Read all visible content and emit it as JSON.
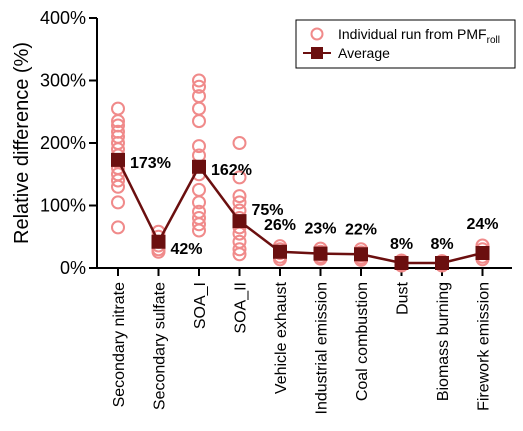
{
  "chart_data": {
    "type": "scatter",
    "title": "",
    "xlabel": "",
    "ylabel": "Relative difference (%)",
    "ylim": [
      0,
      400
    ],
    "y_ticks": [
      0,
      100,
      200,
      300,
      400
    ],
    "y_tick_labels": [
      "0%",
      "100%",
      "200%",
      "300%",
      "400%"
    ],
    "categories": [
      "Secondary nitrate",
      "Secondary sulfate",
      "SOA_I",
      "SOA_II",
      "Vehicle exhaust",
      "Industrial emission",
      "Coal combustion",
      "Dust",
      "Biomass burning",
      "Firework emission"
    ],
    "legend": {
      "placement": "top-right",
      "individual_label": "Individual run from PMF",
      "individual_subscript": "roll",
      "average_label": "Average"
    },
    "colors": {
      "individual": "#f08a8a",
      "average": "#6b0f0f",
      "axis": "#000000"
    },
    "series": [
      {
        "name": "Average",
        "values": [
          173,
          42,
          162,
          75,
          26,
          23,
          22,
          8,
          8,
          24
        ],
        "labels": [
          "173%",
          "42%",
          "162%",
          "75%",
          "26%",
          "23%",
          "22%",
          "8%",
          "8%",
          "24%"
        ]
      }
    ],
    "individual_runs": [
      [
        255,
        235,
        228,
        218,
        210,
        200,
        190,
        180,
        170,
        160,
        150,
        140,
        130,
        105,
        65
      ],
      [
        58,
        50,
        42,
        36,
        30,
        26
      ],
      [
        300,
        290,
        275,
        255,
        235,
        195,
        180,
        150,
        125,
        105,
        90,
        80,
        70,
        60
      ],
      [
        200,
        145,
        115,
        105,
        92,
        80,
        65,
        55,
        42,
        30,
        22
      ],
      [
        35,
        30,
        24,
        18,
        14
      ],
      [
        31,
        26,
        22,
        18,
        15
      ],
      [
        30,
        25,
        20,
        16,
        13
      ],
      [
        12,
        9,
        7,
        5,
        4
      ],
      [
        11,
        9,
        7,
        5,
        4
      ],
      [
        36,
        30,
        24,
        18,
        14
      ]
    ]
  }
}
